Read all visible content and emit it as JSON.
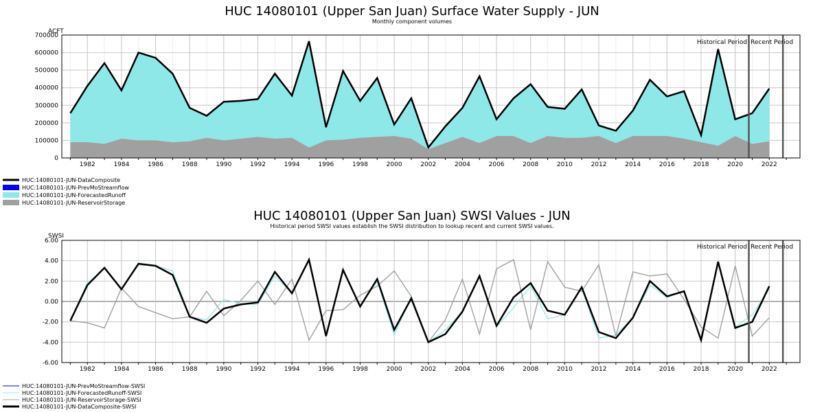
{
  "chart_data": [
    {
      "type": "area",
      "title": "HUC 14080101 (Upper San Juan) Surface Water Supply - JUN",
      "subtitle": "Monthly component volumes",
      "ylabel": "ACFT",
      "xlim": [
        1980.5,
        2023.8
      ],
      "ylim": [
        0,
        700000
      ],
      "yticks": [
        0,
        100000,
        200000,
        300000,
        400000,
        500000,
        600000,
        700000
      ],
      "ytick_labels": [
        "0",
        "100000",
        "200000",
        "300000",
        "400000",
        "500000",
        "600000",
        "700000"
      ],
      "xticks": [
        1982,
        1984,
        1986,
        1988,
        1990,
        1992,
        1994,
        1996,
        1998,
        2000,
        2002,
        2004,
        2006,
        2008,
        2010,
        2012,
        2014,
        2016,
        2018,
        2020,
        2022
      ],
      "grid": true,
      "period_labels": [
        "Historical Period",
        "Recent Period"
      ],
      "period_lines": [
        2020.8,
        2022.8
      ],
      "x": [
        1981,
        1982,
        1983,
        1984,
        1985,
        1986,
        1987,
        1988,
        1989,
        1990,
        1991,
        1992,
        1993,
        1994,
        1995,
        1996,
        1997,
        1998,
        1999,
        2000,
        2001,
        2002,
        2003,
        2004,
        2005,
        2006,
        2007,
        2008,
        2009,
        2010,
        2011,
        2012,
        2013,
        2014,
        2015,
        2016,
        2017,
        2018,
        2019,
        2020,
        2021,
        2022
      ],
      "series": [
        {
          "name": "HUC:14080101-JUN-DataComposite",
          "color": "#000000",
          "values": [
            255000,
            410000,
            540000,
            385000,
            600000,
            570000,
            480000,
            285000,
            240000,
            320000,
            325000,
            335000,
            480000,
            355000,
            665000,
            175000,
            495000,
            325000,
            455000,
            190000,
            340000,
            60000,
            180000,
            285000,
            465000,
            220000,
            340000,
            420000,
            290000,
            280000,
            390000,
            185000,
            155000,
            270000,
            445000,
            350000,
            380000,
            130000,
            620000,
            220000,
            255000,
            395000
          ]
        },
        {
          "name": "HUC:14080101-JUN-PrevMoStreamflow",
          "color": "#0000ff",
          "values": [
            0,
            0,
            0,
            0,
            0,
            0,
            0,
            0,
            0,
            0,
            0,
            0,
            0,
            0,
            0,
            0,
            0,
            0,
            0,
            0,
            0,
            0,
            0,
            0,
            0,
            0,
            0,
            0,
            0,
            0,
            0,
            0,
            0,
            0,
            0,
            0,
            0,
            0,
            0,
            0,
            0,
            0
          ]
        },
        {
          "name": "HUC:14080101-JUN-ForecastedRunoff",
          "color": "#8fe8e8",
          "values": [
            165000,
            320000,
            460000,
            275000,
            500000,
            470000,
            390000,
            190000,
            125000,
            220000,
            215000,
            215000,
            370000,
            240000,
            605000,
            75000,
            390000,
            210000,
            335000,
            65000,
            230000,
            10000,
            95000,
            165000,
            380000,
            95000,
            215000,
            335000,
            165000,
            165000,
            275000,
            60000,
            70000,
            145000,
            320000,
            225000,
            270000,
            40000,
            550000,
            95000,
            175000,
            300000
          ]
        },
        {
          "name": "HUC:14080101-JUN-ReservoirStorage",
          "color": "#a0a0a0",
          "values": [
            90000,
            90000,
            80000,
            110000,
            100000,
            100000,
            90000,
            95000,
            115000,
            100000,
            110000,
            120000,
            110000,
            115000,
            60000,
            100000,
            105000,
            115000,
            120000,
            125000,
            110000,
            50000,
            85000,
            120000,
            85000,
            125000,
            125000,
            85000,
            125000,
            115000,
            115000,
            125000,
            85000,
            125000,
            125000,
            125000,
            110000,
            90000,
            70000,
            125000,
            80000,
            95000
          ]
        }
      ]
    },
    {
      "type": "line",
      "title": "HUC 14080101 (Upper San Juan) SWSI Values - JUN",
      "subtitle": "Historical period SWSI values establish the SWSI distribution to lookup recent and current SWSI values.",
      "ylabel": "SWSI",
      "xlim": [
        1980.5,
        2023.8
      ],
      "ylim": [
        -6,
        6
      ],
      "yticks": [
        -6,
        -4,
        -2,
        0,
        2,
        4,
        6
      ],
      "ytick_labels": [
        "-6.00",
        "-4.00",
        "-2.00",
        "0.00",
        "2.00",
        "4.00",
        "6.00"
      ],
      "xticks": [
        1982,
        1984,
        1986,
        1988,
        1990,
        1992,
        1994,
        1996,
        1998,
        2000,
        2002,
        2004,
        2006,
        2008,
        2010,
        2012,
        2014,
        2016,
        2018,
        2020,
        2022
      ],
      "grid": true,
      "period_labels": [
        "Historical Period",
        "Recent Period"
      ],
      "period_lines": [
        2020.8,
        2022.8
      ],
      "x": [
        1981,
        1982,
        1983,
        1984,
        1985,
        1986,
        1987,
        1988,
        1989,
        1990,
        1991,
        1992,
        1993,
        1994,
        1995,
        1996,
        1997,
        1998,
        1999,
        2000,
        2001,
        2002,
        2003,
        2004,
        2005,
        2006,
        2007,
        2008,
        2009,
        2010,
        2011,
        2012,
        2013,
        2014,
        2015,
        2016,
        2017,
        2018,
        2019,
        2020,
        2021,
        2022
      ],
      "series": [
        {
          "name": "HUC:14080101-JUN-PrevMoStreamflow-SWSI",
          "color": "#0000ff",
          "values": [
            null,
            null,
            null,
            null,
            null,
            null,
            null,
            null,
            null,
            null,
            null,
            null,
            null,
            null,
            null,
            null,
            null,
            null,
            null,
            null,
            null,
            null,
            null,
            null,
            null,
            null,
            null,
            null,
            null,
            null,
            null,
            null,
            null,
            null,
            null,
            null,
            null,
            null,
            null,
            null,
            null,
            null
          ]
        },
        {
          "name": "HUC:14080101-JUN-ForecastedRunoff-SWSI",
          "color": "#8fe8e8",
          "values": [
            -1.8,
            1.8,
            3.2,
            1.2,
            3.6,
            3.5,
            3.0,
            -1.5,
            -1.8,
            0.2,
            -0.2,
            -0.3,
            2.5,
            0.8,
            4.0,
            -3.3,
            3.0,
            -0.5,
            2.0,
            -3.3,
            0.5,
            -4.0,
            -2.8,
            -1.0,
            2.6,
            -2.5,
            -0.6,
            1.5,
            -1.7,
            -1.3,
            1.3,
            -3.6,
            -3.3,
            -1.6,
            1.6,
            0.4,
            1.0,
            -3.8,
            3.8,
            -2.5,
            -1.3,
            1.2
          ]
        },
        {
          "name": "HUC:14080101-JUN-ReservoirStorage-SWSI",
          "color": "#a0a0a0",
          "values": [
            -1.9,
            -2.1,
            -2.6,
            1.3,
            -0.5,
            -1.1,
            -1.7,
            -1.5,
            1.0,
            -1.4,
            0.1,
            2.0,
            -0.3,
            2.2,
            -3.8,
            -0.9,
            -0.8,
            0.6,
            1.5,
            3.0,
            0.5,
            -4.0,
            -1.8,
            2.2,
            -3.2,
            3.2,
            4.1,
            -2.8,
            3.9,
            1.4,
            1.0,
            3.6,
            -3.4,
            2.9,
            2.5,
            2.7,
            0.2,
            -2.5,
            -3.6,
            3.5,
            -3.4,
            -1.6
          ]
        },
        {
          "name": "HUC:14080101-JUN-DataComposite-SWSI",
          "color": "#000000",
          "values": [
            -1.9,
            1.6,
            3.3,
            1.2,
            3.7,
            3.5,
            2.6,
            -1.5,
            -2.1,
            -0.7,
            -0.3,
            -0.1,
            2.9,
            0.8,
            4.1,
            -3.4,
            3.1,
            -0.5,
            2.2,
            -2.8,
            0.3,
            -4.0,
            -3.2,
            -1.0,
            2.5,
            -2.4,
            0.4,
            1.8,
            -0.9,
            -1.3,
            1.4,
            -3.0,
            -3.6,
            -1.6,
            2.0,
            0.5,
            1.0,
            -3.8,
            3.9,
            -2.6,
            -2.0,
            1.5
          ]
        }
      ]
    }
  ]
}
